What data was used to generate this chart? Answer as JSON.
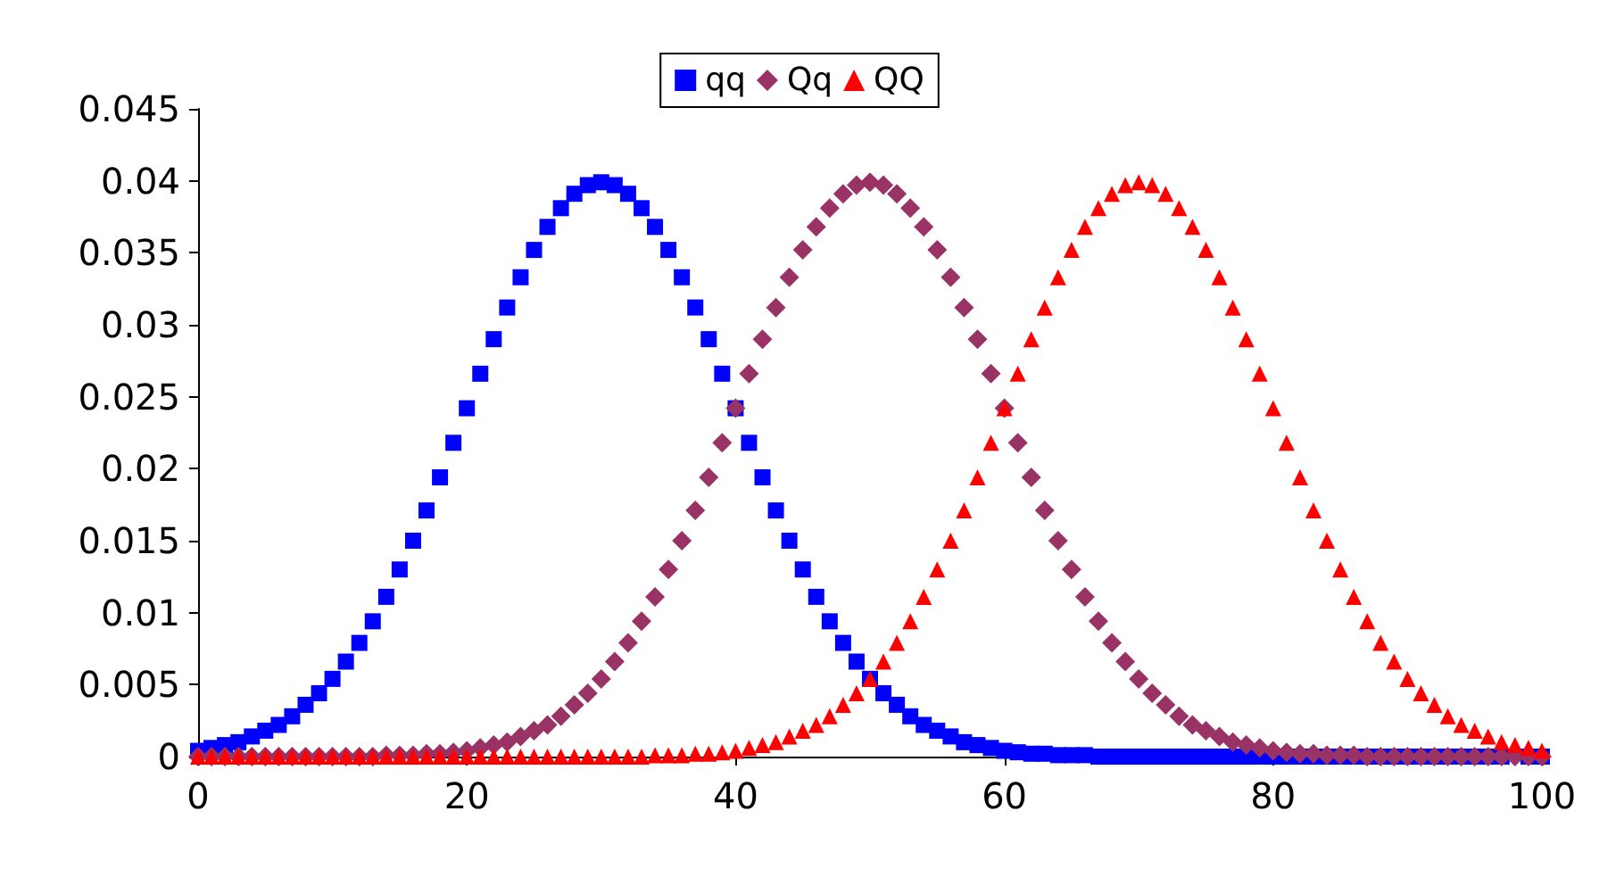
{
  "chart_data": {
    "type": "scatter",
    "x": [
      0,
      1,
      2,
      3,
      4,
      5,
      6,
      7,
      8,
      9,
      10,
      11,
      12,
      13,
      14,
      15,
      16,
      17,
      18,
      19,
      20,
      21,
      22,
      23,
      24,
      25,
      26,
      27,
      28,
      29,
      30,
      31,
      32,
      33,
      34,
      35,
      36,
      37,
      38,
      39,
      40,
      41,
      42,
      43,
      44,
      45,
      46,
      47,
      48,
      49,
      50,
      51,
      52,
      53,
      54,
      55,
      56,
      57,
      58,
      59,
      60,
      61,
      62,
      63,
      64,
      65,
      66,
      67,
      68,
      69,
      70,
      71,
      72,
      73,
      74,
      75,
      76,
      77,
      78,
      79,
      80,
      81,
      82,
      83,
      84,
      85,
      86,
      87,
      88,
      89,
      90,
      91,
      92,
      93,
      94,
      95,
      96,
      97,
      98,
      99,
      100
    ],
    "series": [
      {
        "name": "qq",
        "color": "#0000ff",
        "marker": "square",
        "values": [
          0.0004,
          0.0006,
          0.0008,
          0.001,
          0.0014,
          0.0018,
          0.0022,
          0.0028,
          0.0036,
          0.0044,
          0.0054,
          0.0066,
          0.0079,
          0.0094,
          0.0111,
          0.013,
          0.015,
          0.0171,
          0.0194,
          0.0218,
          0.0242,
          0.0266,
          0.029,
          0.0312,
          0.0333,
          0.0352,
          0.0368,
          0.0381,
          0.0391,
          0.0397,
          0.0399,
          0.0397,
          0.0391,
          0.0381,
          0.0368,
          0.0352,
          0.0333,
          0.0312,
          0.029,
          0.0266,
          0.0242,
          0.0218,
          0.0194,
          0.0171,
          0.015,
          0.013,
          0.0111,
          0.0094,
          0.0079,
          0.0066,
          0.0054,
          0.0044,
          0.0036,
          0.0028,
          0.0022,
          0.0018,
          0.0014,
          0.001,
          0.0008,
          0.0006,
          0.0004,
          0.0003,
          0.0002,
          0.0002,
          0.0001,
          0.0001,
          0.0001,
          0,
          0,
          0,
          0,
          0,
          0,
          0,
          0,
          0,
          0,
          0,
          0,
          0,
          0,
          0,
          0,
          0,
          0,
          0,
          0,
          0,
          0,
          0,
          0,
          0,
          0,
          0,
          0,
          0,
          0,
          0,
          null,
          0,
          0
        ]
      },
      {
        "name": "Qq",
        "color": "#993366",
        "marker": "diamond",
        "values": [
          0,
          0,
          0,
          0,
          0,
          0,
          0,
          0,
          0,
          0,
          0,
          0,
          0,
          0,
          0.0001,
          0.0001,
          0.0001,
          0.0002,
          0.0002,
          0.0003,
          0.0004,
          0.0006,
          0.0008,
          0.001,
          0.0014,
          0.0018,
          0.0022,
          0.0028,
          0.0036,
          0.0044,
          0.0054,
          0.0066,
          0.0079,
          0.0094,
          0.0111,
          0.013,
          0.015,
          0.0171,
          0.0194,
          0.0218,
          0.0242,
          0.0266,
          0.029,
          0.0312,
          0.0333,
          0.0352,
          0.0368,
          0.0381,
          0.0391,
          0.0397,
          0.0399,
          0.0397,
          0.0391,
          0.0381,
          0.0368,
          0.0352,
          0.0333,
          0.0312,
          0.029,
          0.0266,
          0.0242,
          0.0218,
          0.0194,
          0.0171,
          0.015,
          0.013,
          0.0111,
          0.0094,
          0.0079,
          0.0066,
          0.0054,
          0.0044,
          0.0036,
          0.0028,
          0.0022,
          0.0018,
          0.0014,
          0.001,
          0.0008,
          0.0006,
          0.0004,
          0.0003,
          0.0002,
          0.0002,
          0.0001,
          0.0001,
          0.0001,
          0,
          0,
          0,
          0,
          0,
          0,
          0,
          0,
          0,
          0,
          0,
          0,
          0,
          0
        ]
      },
      {
        "name": "QQ",
        "color": "#ff0000",
        "marker": "triangle",
        "values": [
          0,
          0,
          0,
          0,
          0,
          0,
          0,
          0,
          0,
          0,
          0,
          0,
          0,
          0,
          0,
          0,
          0,
          0,
          0,
          0,
          0,
          0,
          0,
          0,
          0,
          0,
          0,
          0,
          0,
          0,
          0,
          0,
          0,
          0,
          0.0001,
          0.0001,
          0.0001,
          0.0002,
          0.0002,
          0.0003,
          0.0004,
          0.0006,
          0.0008,
          0.001,
          0.0014,
          0.0018,
          0.0022,
          0.0028,
          0.0036,
          0.0044,
          0.0054,
          0.0066,
          0.0079,
          0.0094,
          0.0111,
          0.013,
          0.015,
          0.0171,
          0.0194,
          0.0218,
          0.0242,
          0.0266,
          0.029,
          0.0312,
          0.0333,
          0.0352,
          0.0368,
          0.0381,
          0.0391,
          0.0397,
          0.0399,
          0.0397,
          0.0391,
          0.0381,
          0.0368,
          0.0352,
          0.0333,
          0.0312,
          0.029,
          0.0266,
          0.0242,
          0.0218,
          0.0194,
          0.0171,
          0.015,
          0.013,
          0.0111,
          0.0094,
          0.0079,
          0.0066,
          0.0054,
          0.0044,
          0.0036,
          0.0028,
          0.0022,
          0.0018,
          0.0014,
          0.001,
          0.0008,
          0.0006,
          0.0004
        ]
      }
    ],
    "xlim": [
      0,
      100
    ],
    "xticks": [
      0,
      20,
      40,
      60,
      80,
      100
    ],
    "ylim": [
      0,
      0.045
    ],
    "yticks": [
      0,
      0.005,
      0.01,
      0.015,
      0.02,
      0.025,
      0.03,
      0.035,
      0.04,
      0.045
    ],
    "grid": false,
    "legend": "top"
  }
}
